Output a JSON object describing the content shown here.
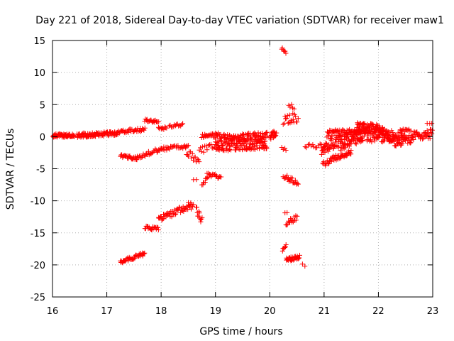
{
  "chart_data": {
    "type": "scatter",
    "title": "Day 221 of 2018, Sidereal Day-to-day VTEC variation (SDTVAR) for receiver maw1",
    "xlabel": "GPS time / hours",
    "ylabel": "SDTVAR / TECUs",
    "xlim": [
      16,
      23
    ],
    "ylim": [
      -25,
      15
    ],
    "xticks": [
      16,
      17,
      18,
      19,
      20,
      21,
      22,
      23
    ],
    "yticks": [
      -25,
      -20,
      -15,
      -10,
      -5,
      0,
      5,
      10,
      15
    ],
    "xtick_labels": [
      "16",
      "17",
      "18",
      "19",
      "20",
      "21",
      "22",
      "23"
    ],
    "ytick_labels": [
      "-25",
      "-20",
      "-15",
      "-10",
      "-5",
      "0",
      "5",
      "10",
      "15"
    ],
    "grid": true,
    "marker": "+",
    "color": "#ff0000",
    "segments": [
      {
        "x0": 16.0,
        "x1": 16.4,
        "y0": 0.2,
        "y1": 0.2,
        "spread": 0.3,
        "n": 60
      },
      {
        "x0": 16.45,
        "x1": 17.2,
        "y0": 0.2,
        "y1": 0.5,
        "spread": 0.35,
        "n": 90
      },
      {
        "x0": 17.2,
        "x1": 17.7,
        "y0": 0.7,
        "y1": 1.1,
        "spread": 0.3,
        "n": 35
      },
      {
        "x0": 17.7,
        "x1": 17.95,
        "y0": 2.6,
        "y1": 2.3,
        "spread": 0.2,
        "n": 20
      },
      {
        "x0": 17.95,
        "x1": 18.1,
        "y0": 1.5,
        "y1": 1.2,
        "spread": 0.3,
        "n": 10
      },
      {
        "x0": 18.15,
        "x1": 18.4,
        "y0": 1.6,
        "y1": 1.9,
        "spread": 0.2,
        "n": 14
      },
      {
        "x0": 17.25,
        "x1": 17.55,
        "y0": -3.0,
        "y1": -3.4,
        "spread": 0.25,
        "n": 25
      },
      {
        "x0": 17.55,
        "x1": 18.0,
        "y0": -3.2,
        "y1": -1.9,
        "spread": 0.35,
        "n": 30
      },
      {
        "x0": 18.0,
        "x1": 18.5,
        "y0": -1.9,
        "y1": -1.5,
        "spread": 0.3,
        "n": 30
      },
      {
        "x0": 18.45,
        "x1": 18.7,
        "y0": -2.2,
        "y1": -3.8,
        "spread": 0.6,
        "n": 15
      },
      {
        "x0": 18.7,
        "x1": 19.0,
        "y0": -2.2,
        "y1": -1.5,
        "spread": 0.5,
        "n": 15
      },
      {
        "x0": 18.75,
        "x1": 19.05,
        "y0": 0.0,
        "y1": 0.3,
        "spread": 0.35,
        "n": 25
      },
      {
        "x0": 18.75,
        "x1": 18.85,
        "y0": -7.8,
        "y1": -6.2,
        "spread": 0.3,
        "n": 8
      },
      {
        "x0": 18.85,
        "x1": 19.1,
        "y0": -6.0,
        "y1": -6.3,
        "spread": 0.3,
        "n": 18
      },
      {
        "x0": 18.6,
        "x1": 18.65,
        "y0": -6.8,
        "y1": -6.8,
        "spread": 0.2,
        "n": 2
      },
      {
        "x0": 19.0,
        "x1": 19.95,
        "y0": -1.0,
        "y1": -0.6,
        "spread": 1.3,
        "n": 240
      },
      {
        "x0": 20.0,
        "x1": 20.12,
        "y0": 0.0,
        "y1": 0.6,
        "spread": 0.5,
        "n": 20
      },
      {
        "x0": 20.22,
        "x1": 20.3,
        "y0": 13.8,
        "y1": 13.0,
        "spread": 0.3,
        "n": 6
      },
      {
        "x0": 20.25,
        "x1": 20.52,
        "y0": 2.5,
        "y1": 3.2,
        "spread": 0.9,
        "n": 20
      },
      {
        "x0": 20.35,
        "x1": 20.45,
        "y0": 5.0,
        "y1": 4.5,
        "spread": 0.3,
        "n": 5
      },
      {
        "x0": 20.22,
        "x1": 20.3,
        "y0": -1.8,
        "y1": -2.0,
        "spread": 0.2,
        "n": 4
      },
      {
        "x0": 20.25,
        "x1": 20.52,
        "y0": -6.2,
        "y1": -7.2,
        "spread": 0.4,
        "n": 22
      },
      {
        "x0": 20.3,
        "x1": 20.5,
        "y0": -13.5,
        "y1": -12.6,
        "spread": 0.4,
        "n": 16
      },
      {
        "x0": 20.28,
        "x1": 20.32,
        "y0": -12.0,
        "y1": -12.0,
        "spread": 0.2,
        "n": 2
      },
      {
        "x0": 20.23,
        "x1": 20.3,
        "y0": -17.8,
        "y1": -17.0,
        "spread": 0.3,
        "n": 6
      },
      {
        "x0": 20.3,
        "x1": 20.55,
        "y0": -19.2,
        "y1": -18.8,
        "spread": 0.3,
        "n": 28
      },
      {
        "x0": 20.6,
        "x1": 20.65,
        "y0": -20.0,
        "y1": -20.0,
        "spread": 0.2,
        "n": 2
      },
      {
        "x0": 17.25,
        "x1": 17.7,
        "y0": -19.6,
        "y1": -18.2,
        "spread": 0.3,
        "n": 40
      },
      {
        "x0": 17.7,
        "x1": 17.95,
        "y0": -14.2,
        "y1": -14.3,
        "spread": 0.3,
        "n": 20
      },
      {
        "x0": 17.95,
        "x1": 18.55,
        "y0": -12.8,
        "y1": -10.8,
        "spread": 0.5,
        "n": 50
      },
      {
        "x0": 18.5,
        "x1": 18.6,
        "y0": -10.5,
        "y1": -10.6,
        "spread": 0.3,
        "n": 6
      },
      {
        "x0": 18.65,
        "x1": 18.75,
        "y0": -11.5,
        "y1": -13.0,
        "spread": 0.7,
        "n": 12
      },
      {
        "x0": 20.65,
        "x1": 20.95,
        "y0": -1.5,
        "y1": -1.4,
        "spread": 0.3,
        "n": 12
      },
      {
        "x0": 20.95,
        "x1": 21.3,
        "y0": -2.0,
        "y1": -0.5,
        "spread": 1.0,
        "n": 50
      },
      {
        "x0": 20.97,
        "x1": 21.1,
        "y0": -4.4,
        "y1": -3.8,
        "spread": 0.4,
        "n": 10
      },
      {
        "x0": 21.1,
        "x1": 21.5,
        "y0": -3.6,
        "y1": -2.4,
        "spread": 0.4,
        "n": 40
      },
      {
        "x0": 21.05,
        "x1": 21.6,
        "y0": 0.3,
        "y1": 0.6,
        "spread": 0.7,
        "n": 60
      },
      {
        "x0": 21.3,
        "x1": 21.7,
        "y0": -1.2,
        "y1": 0.2,
        "spread": 1.0,
        "n": 60
      },
      {
        "x0": 21.6,
        "x1": 22.1,
        "y0": 1.5,
        "y1": 1.0,
        "spread": 0.8,
        "n": 90
      },
      {
        "x0": 21.55,
        "x1": 22.3,
        "y0": 0.3,
        "y1": 0.0,
        "spread": 1.0,
        "n": 90
      },
      {
        "x0": 22.1,
        "x1": 22.6,
        "y0": 0.2,
        "y1": -0.3,
        "spread": 0.8,
        "n": 60
      },
      {
        "x0": 22.3,
        "x1": 22.45,
        "y0": -1.3,
        "y1": -1.0,
        "spread": 0.3,
        "n": 12
      },
      {
        "x0": 22.4,
        "x1": 22.6,
        "y0": 0.9,
        "y1": 1.0,
        "spread": 0.3,
        "n": 12
      },
      {
        "x0": 22.6,
        "x1": 23.0,
        "y0": 0.0,
        "y1": 0.5,
        "spread": 0.7,
        "n": 45
      },
      {
        "x0": 22.9,
        "x1": 22.98,
        "y0": 2.1,
        "y1": 2.2,
        "spread": 0.2,
        "n": 3
      }
    ]
  }
}
